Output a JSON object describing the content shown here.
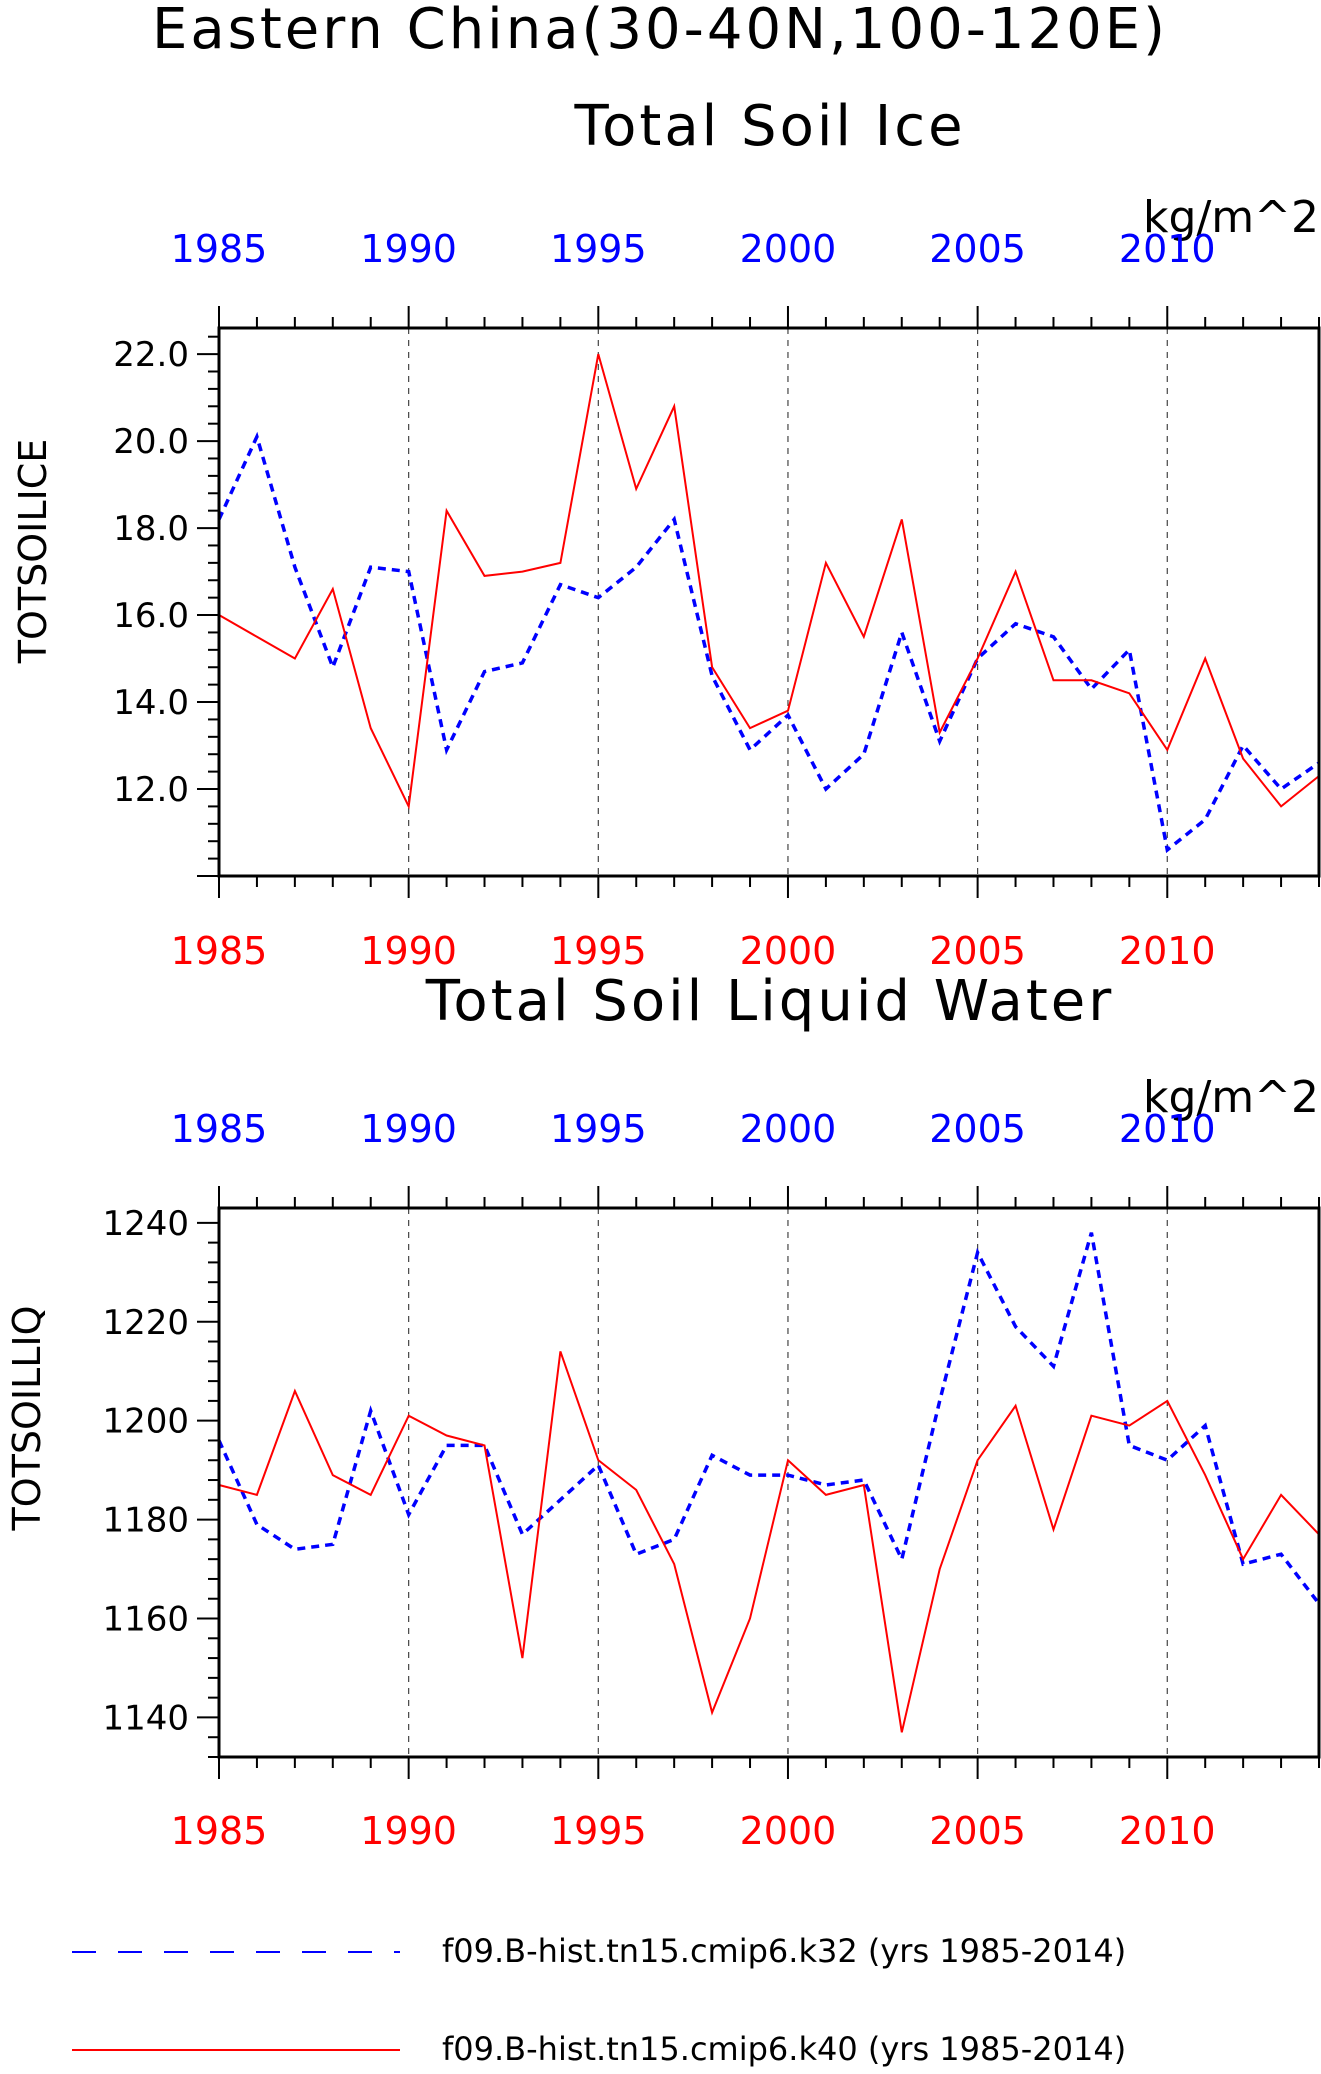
{
  "figure": {
    "title_line1": "Eastern China(30-40N,100-120E)",
    "colors": {
      "red": "#ff0000",
      "blue": "#0000ff",
      "axis": "#000000",
      "grid": "#444444"
    }
  },
  "legend": [
    {
      "label": "f09.B-hist.tn15.cmip6.k32 (yrs 1985-2014)",
      "color": "#0000ff",
      "style": "dashed",
      "icon": "dashed-line"
    },
    {
      "label": "f09.B-hist.tn15.cmip6.k40 (yrs 1985-2014)",
      "color": "#ff0000",
      "style": "solid",
      "icon": "solid-line"
    }
  ],
  "chart_data": [
    {
      "type": "line",
      "title": "Total Soil Ice",
      "units": "kg/m^2",
      "ylabel": "TOTSOILICE",
      "xlabel": "",
      "xlim": [
        1985,
        2014
      ],
      "ylim": [
        10.0,
        22.6
      ],
      "xticks": [
        1985,
        1990,
        1995,
        2000,
        2005,
        2010
      ],
      "xtick_labels": [
        "1985",
        "1990",
        "1995",
        "2000",
        "2005",
        "2010"
      ],
      "yticks": [
        12.0,
        14.0,
        16.0,
        18.0,
        20.0,
        22.0
      ],
      "ytick_labels": [
        "12.0",
        "14.0",
        "16.0",
        "18.0",
        "20.0",
        "22.0"
      ],
      "ygrid": false,
      "xgrid": true,
      "x": [
        1985,
        1986,
        1987,
        1988,
        1989,
        1990,
        1991,
        1992,
        1993,
        1994,
        1995,
        1996,
        1997,
        1998,
        1999,
        2000,
        2001,
        2002,
        2003,
        2004,
        2005,
        2006,
        2007,
        2008,
        2009,
        2010,
        2011,
        2012,
        2013,
        2014
      ],
      "series": [
        {
          "name": "f09.B-hist.tn15.cmip6.k32",
          "color": "#0000ff",
          "style": "dashed",
          "values": [
            18.2,
            20.1,
            17.1,
            14.8,
            17.1,
            17.0,
            12.9,
            14.7,
            14.9,
            16.7,
            16.4,
            17.1,
            18.2,
            14.6,
            12.9,
            13.7,
            12.0,
            12.8,
            15.6,
            13.1,
            15.0,
            15.8,
            15.5,
            14.3,
            15.2,
            10.6,
            11.3,
            13.0,
            12.0,
            12.6
          ]
        },
        {
          "name": "f09.B-hist.tn15.cmip6.k40",
          "color": "#ff0000",
          "style": "solid",
          "values": [
            16.0,
            15.5,
            15.0,
            16.6,
            13.4,
            11.6,
            18.4,
            16.9,
            17.0,
            17.2,
            22.0,
            18.9,
            20.8,
            14.8,
            13.4,
            13.8,
            17.2,
            15.5,
            18.2,
            13.3,
            15.0,
            17.0,
            14.5,
            14.5,
            14.2,
            12.9,
            15.0,
            12.7,
            11.6,
            12.3
          ]
        }
      ]
    },
    {
      "type": "line",
      "title": "Total Soil Liquid Water",
      "units": "kg/m^2",
      "ylabel": "TOTSOILLIQ",
      "xlabel": "",
      "xlim": [
        1985,
        2014
      ],
      "ylim": [
        1132,
        1243
      ],
      "xticks": [
        1985,
        1990,
        1995,
        2000,
        2005,
        2010
      ],
      "xtick_labels": [
        "1985",
        "1990",
        "1995",
        "2000",
        "2005",
        "2010"
      ],
      "yticks": [
        1140,
        1160,
        1180,
        1200,
        1220,
        1240
      ],
      "ytick_labels": [
        "1140",
        "1160",
        "1180",
        "1200",
        "1220",
        "1240"
      ],
      "ygrid": false,
      "xgrid": true,
      "x": [
        1985,
        1986,
        1987,
        1988,
        1989,
        1990,
        1991,
        1992,
        1993,
        1994,
        1995,
        1996,
        1997,
        1998,
        1999,
        2000,
        2001,
        2002,
        2003,
        2004,
        2005,
        2006,
        2007,
        2008,
        2009,
        2010,
        2011,
        2012,
        2013,
        2014
      ],
      "series": [
        {
          "name": "f09.B-hist.tn15.cmip6.k32",
          "color": "#0000ff",
          "style": "dashed",
          "values": [
            1196,
            1179,
            1174,
            1175,
            1202,
            1181,
            1195,
            1195,
            1177,
            1184,
            1191,
            1173,
            1176,
            1193,
            1189,
            1189,
            1187,
            1188,
            1172,
            1204,
            1234,
            1219,
            1211,
            1238,
            1195,
            1192,
            1199,
            1171,
            1173,
            1163
          ]
        },
        {
          "name": "f09.B-hist.tn15.cmip6.k40",
          "color": "#ff0000",
          "style": "solid",
          "values": [
            1187,
            1185,
            1206,
            1189,
            1185,
            1201,
            1197,
            1195,
            1152,
            1214,
            1192,
            1186,
            1171,
            1141,
            1160,
            1192,
            1185,
            1187,
            1137,
            1170,
            1192,
            1203,
            1178,
            1201,
            1199,
            1204,
            1189,
            1172,
            1185,
            1177
          ]
        }
      ]
    }
  ]
}
